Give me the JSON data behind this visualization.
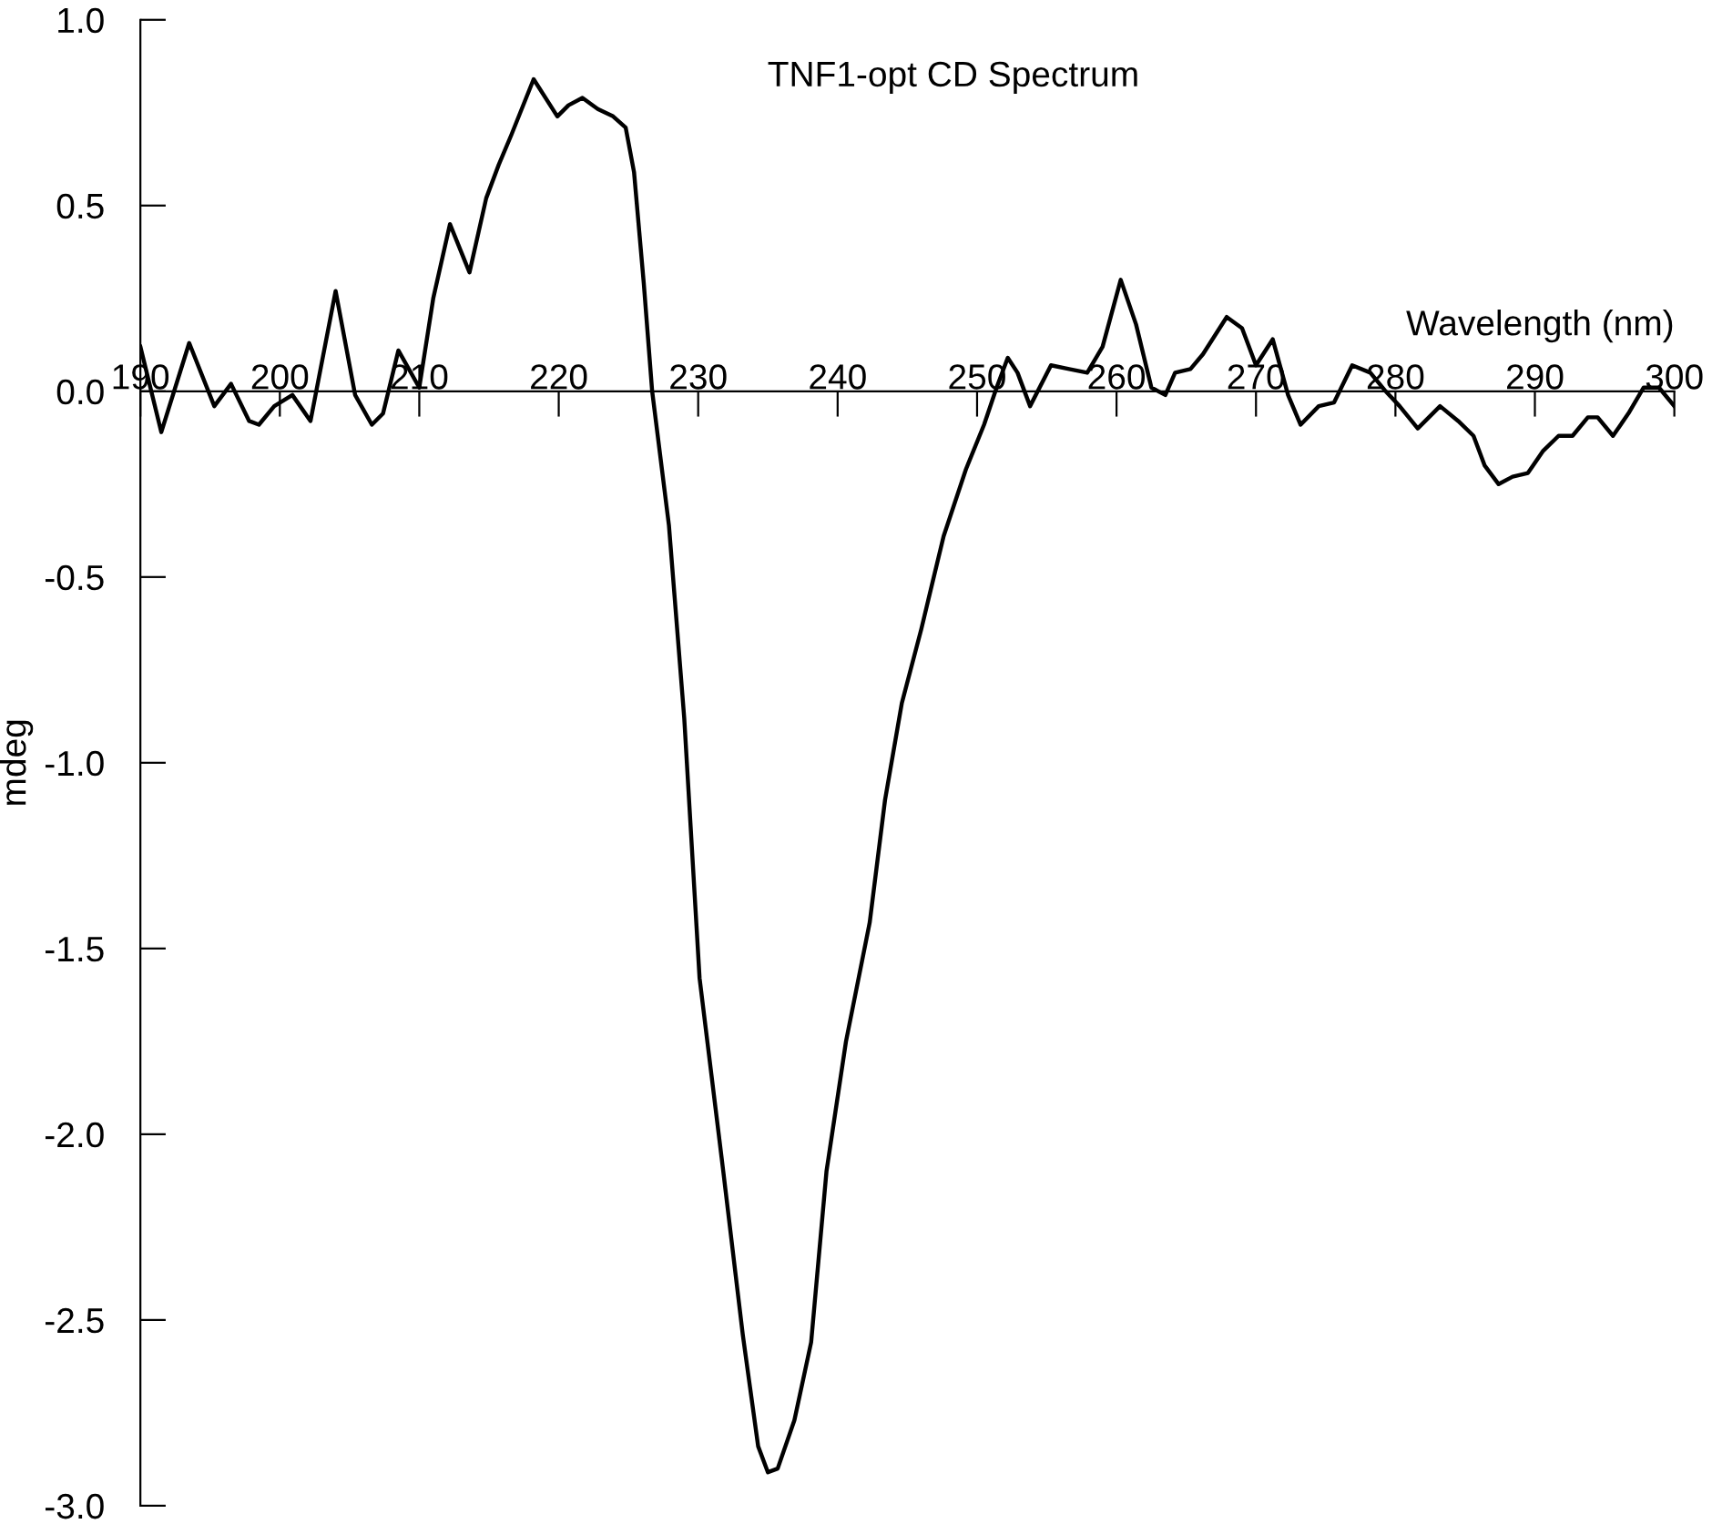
{
  "chart_data": {
    "type": "line",
    "title": "TNF1-opt CD Spectrum",
    "xlabel": "Wavelength (nm)",
    "ylabel": "mdeg",
    "xlim": [
      190,
      300
    ],
    "xticks": [
      190,
      200,
      210,
      220,
      230,
      240,
      250,
      260,
      270,
      280,
      290,
      300
    ],
    "ylim": [
      -3.0,
      1.0
    ],
    "yticks": [
      {
        "value": 1.0,
        "label": "1.0"
      },
      {
        "value": 0.5,
        "label": "0.5"
      },
      {
        "value": 0.0,
        "label": "0.0"
      },
      {
        "value": -0.5,
        "label": "-0.5"
      },
      {
        "value": -1.0,
        "label": "-1.0"
      },
      {
        "value": -1.5,
        "label": "-1.5"
      },
      {
        "value": -2.0,
        "label": "-2.0"
      },
      {
        "value": -2.5,
        "label": "-2.5"
      },
      {
        "value": -3.0,
        "label": "-3.0"
      }
    ],
    "grid": false,
    "marker": "none",
    "line_style": "solid",
    "series": [
      {
        "color": "#000000",
        "x": [
          190.0,
          191.5,
          193.5,
          195.3,
          196.5,
          197.8,
          198.5,
          199.6,
          200.9,
          202.2,
          204.0,
          205.4,
          206.6,
          207.4,
          208.5,
          210.0,
          211.0,
          212.2,
          213.6,
          214.8,
          215.7,
          216.6,
          218.2,
          219.9,
          220.7,
          221.7,
          222.8,
          223.9,
          224.8,
          225.4,
          226.1,
          226.7,
          227.3,
          227.9,
          229.0,
          230.1,
          231.8,
          233.2,
          234.3,
          235.0,
          235.7,
          236.9,
          238.1,
          239.2,
          240.6,
          242.3,
          243.4,
          244.6,
          246.0,
          247.6,
          249.2,
          250.5,
          251.4,
          252.2,
          252.9,
          253.8,
          255.3,
          256.6,
          257.9,
          259.0,
          260.3,
          261.4,
          262.5,
          263.5,
          264.2,
          265.3,
          266.2,
          267.9,
          269.0,
          270.0,
          271.2,
          272.3,
          273.2,
          274.5,
          275.6,
          276.9,
          278.2,
          279.3,
          280.3,
          281.6,
          283.2,
          284.5,
          285.6,
          286.4,
          287.4,
          288.4,
          289.5,
          290.6,
          291.7,
          292.7,
          293.8,
          294.5,
          295.6,
          296.7,
          297.8,
          298.9,
          300.0
        ],
        "values": [
          0.12,
          -0.11,
          0.13,
          -0.04,
          0.02,
          -0.08,
          -0.09,
          -0.04,
          -0.01,
          -0.08,
          0.27,
          -0.01,
          -0.09,
          -0.06,
          0.11,
          0.01,
          0.25,
          0.45,
          0.32,
          0.52,
          0.61,
          0.69,
          0.84,
          0.74,
          0.77,
          0.79,
          0.76,
          0.74,
          0.71,
          0.59,
          0.29,
          0.0,
          -0.18,
          -0.36,
          -0.88,
          -1.58,
          -2.1,
          -2.54,
          -2.84,
          -2.91,
          -2.9,
          -2.77,
          -2.56,
          -2.1,
          -1.75,
          -1.43,
          -1.1,
          -0.84,
          -0.64,
          -0.39,
          -0.21,
          -0.09,
          0.01,
          0.09,
          0.05,
          -0.04,
          0.07,
          0.06,
          0.05,
          0.12,
          0.3,
          0.18,
          0.01,
          -0.01,
          0.05,
          0.06,
          0.1,
          0.2,
          0.17,
          0.07,
          0.14,
          -0.01,
          -0.09,
          -0.04,
          -0.03,
          0.07,
          0.05,
          0.0,
          -0.04,
          -0.1,
          -0.04,
          -0.08,
          -0.12,
          -0.2,
          -0.25,
          -0.23,
          -0.22,
          -0.16,
          -0.12,
          -0.12,
          -0.07,
          -0.07,
          -0.12,
          -0.06,
          0.01,
          0.01,
          -0.04
        ]
      }
    ]
  }
}
